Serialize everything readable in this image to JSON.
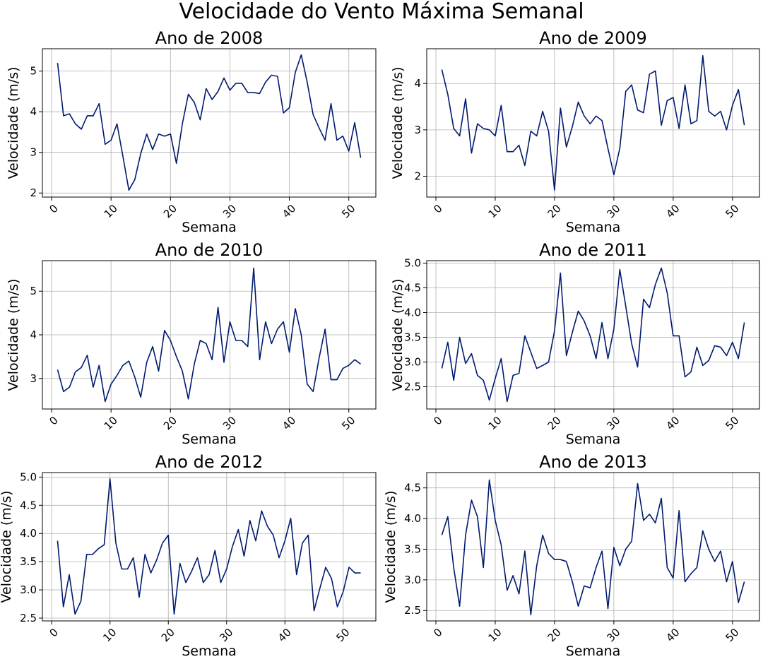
{
  "figure": {
    "title": "Velocidade do Vento Máxima Semanal"
  },
  "style": {
    "line_color": "#001a70",
    "grid_color": "#b0b0b0"
  },
  "chart_data": [
    {
      "type": "line",
      "title": "Ano de 2008",
      "xlabel": "Semana",
      "ylabel": "Velocidade (m/s)",
      "xlim": [
        -1.55,
        54.55
      ],
      "ylim": [
        1.9,
        5.55
      ],
      "xticks": [
        0,
        10,
        20,
        30,
        40,
        50
      ],
      "yticks": [
        2,
        3,
        4,
        5
      ],
      "grid": true,
      "x": [
        1,
        2,
        3,
        4,
        5,
        6,
        7,
        8,
        9,
        10,
        11,
        12,
        13,
        14,
        15,
        16,
        17,
        18,
        19,
        20,
        21,
        22,
        23,
        24,
        25,
        26,
        27,
        28,
        29,
        30,
        31,
        32,
        33,
        34,
        35,
        36,
        37,
        38,
        39,
        40,
        41,
        42,
        43,
        44,
        45,
        46,
        47,
        48,
        49,
        50,
        51,
        52
      ],
      "y": [
        5.2,
        3.9,
        3.95,
        3.7,
        3.57,
        3.9,
        3.9,
        4.2,
        3.2,
        3.3,
        3.7,
        2.9,
        2.07,
        2.33,
        2.97,
        3.45,
        3.07,
        3.45,
        3.4,
        3.45,
        2.73,
        3.7,
        4.43,
        4.23,
        3.8,
        4.57,
        4.3,
        4.5,
        4.83,
        4.53,
        4.7,
        4.7,
        4.47,
        4.47,
        4.45,
        4.73,
        4.9,
        4.87,
        3.97,
        4.1,
        4.97,
        5.4,
        4.73,
        3.93,
        3.6,
        3.3,
        4.2,
        3.3,
        3.4,
        3.03,
        3.73,
        2.87
      ]
    },
    {
      "type": "line",
      "title": "Ano de 2009",
      "xlabel": "Semana",
      "ylabel": "Velocidade (m/s)",
      "xlim": [
        -1.55,
        54.55
      ],
      "ylim": [
        1.55,
        4.75
      ],
      "xticks": [
        0,
        10,
        20,
        30,
        40,
        50
      ],
      "yticks": [
        2,
        3,
        4
      ],
      "grid": true,
      "x": [
        1,
        2,
        3,
        4,
        5,
        6,
        7,
        8,
        9,
        10,
        11,
        12,
        13,
        14,
        15,
        16,
        17,
        18,
        19,
        20,
        21,
        22,
        23,
        24,
        25,
        26,
        27,
        28,
        29,
        30,
        31,
        32,
        33,
        34,
        35,
        36,
        37,
        38,
        39,
        40,
        41,
        42,
        43,
        44,
        45,
        46,
        47,
        48,
        49,
        50,
        51,
        52
      ],
      "y": [
        4.3,
        3.77,
        3.03,
        2.87,
        3.67,
        2.5,
        3.13,
        3.03,
        3.0,
        2.87,
        3.53,
        2.53,
        2.53,
        2.67,
        2.23,
        2.97,
        2.87,
        3.4,
        2.97,
        1.7,
        3.47,
        2.63,
        3.07,
        3.6,
        3.3,
        3.13,
        3.3,
        3.2,
        2.6,
        2.03,
        2.6,
        3.83,
        3.97,
        3.43,
        3.37,
        4.2,
        4.27,
        3.1,
        3.63,
        3.7,
        3.03,
        3.97,
        3.13,
        3.2,
        4.6,
        3.4,
        3.3,
        3.4,
        3.0,
        3.53,
        3.87,
        3.1
      ]
    },
    {
      "type": "line",
      "title": "Ano de 2010",
      "xlabel": "Semana",
      "ylabel": "Velocidade (m/s)",
      "xlim": [
        -1.55,
        54.55
      ],
      "ylim": [
        2.3,
        5.7
      ],
      "xticks": [
        0,
        10,
        20,
        30,
        40,
        50
      ],
      "yticks": [
        3,
        4,
        5
      ],
      "grid": true,
      "x": [
        1,
        2,
        3,
        4,
        5,
        6,
        7,
        8,
        9,
        10,
        11,
        12,
        13,
        14,
        15,
        16,
        17,
        18,
        19,
        20,
        21,
        22,
        23,
        24,
        25,
        26,
        27,
        28,
        29,
        30,
        31,
        32,
        33,
        34,
        35,
        36,
        37,
        38,
        39,
        40,
        41,
        42,
        43,
        44,
        45,
        46,
        47,
        48,
        49,
        50,
        51,
        52
      ],
      "y": [
        3.2,
        2.7,
        2.8,
        3.15,
        3.25,
        3.53,
        2.8,
        3.3,
        2.47,
        2.87,
        3.07,
        3.3,
        3.4,
        3.03,
        2.57,
        3.37,
        3.73,
        3.17,
        4.1,
        3.87,
        3.5,
        3.17,
        2.53,
        3.33,
        3.87,
        3.8,
        3.43,
        4.63,
        3.37,
        4.3,
        3.87,
        3.87,
        3.73,
        5.53,
        3.43,
        4.3,
        3.8,
        4.13,
        4.3,
        3.6,
        4.6,
        4.0,
        2.87,
        2.7,
        3.47,
        4.13,
        2.97,
        2.97,
        3.23,
        3.3,
        3.43,
        3.33
      ]
    },
    {
      "type": "line",
      "title": "Ano de 2011",
      "xlabel": "Semana",
      "ylabel": "Velocidade (m/s)",
      "xlim": [
        -1.55,
        54.55
      ],
      "ylim": [
        2.05,
        5.05
      ],
      "xticks": [
        0,
        10,
        20,
        30,
        40,
        50
      ],
      "yticks": [
        2.5,
        3.0,
        3.5,
        4.0,
        4.5,
        5.0
      ],
      "grid": true,
      "x": [
        1,
        2,
        3,
        4,
        5,
        6,
        7,
        8,
        9,
        10,
        11,
        12,
        13,
        14,
        15,
        16,
        17,
        18,
        19,
        20,
        21,
        22,
        23,
        24,
        25,
        26,
        27,
        28,
        29,
        30,
        31,
        32,
        33,
        34,
        35,
        36,
        37,
        38,
        39,
        40,
        41,
        42,
        43,
        44,
        45,
        46,
        47,
        48,
        49,
        50,
        51,
        52
      ],
      "y": [
        2.87,
        3.4,
        2.63,
        3.5,
        2.97,
        3.17,
        2.73,
        2.63,
        2.23,
        2.67,
        3.07,
        2.2,
        2.73,
        2.77,
        3.53,
        3.2,
        2.87,
        2.93,
        3.0,
        3.63,
        4.8,
        3.13,
        3.6,
        4.03,
        3.83,
        3.53,
        3.07,
        3.8,
        3.07,
        3.67,
        4.87,
        4.13,
        3.37,
        2.9,
        4.27,
        4.1,
        4.57,
        4.9,
        4.4,
        3.53,
        3.53,
        2.7,
        2.8,
        3.3,
        2.93,
        3.03,
        3.33,
        3.3,
        3.13,
        3.4,
        3.07,
        3.8
      ]
    },
    {
      "type": "line",
      "title": "Ano de 2012",
      "xlabel": "Semana",
      "ylabel": "Velocidade (m/s)",
      "xlim": [
        -1.6,
        55.6
      ],
      "ylim": [
        2.45,
        5.08
      ],
      "xticks": [
        0,
        10,
        20,
        30,
        40,
        50
      ],
      "yticks": [
        2.5,
        3.0,
        3.5,
        4.0,
        4.5,
        5.0
      ],
      "grid": true,
      "x": [
        1,
        2,
        3,
        4,
        5,
        6,
        7,
        8,
        9,
        10,
        11,
        12,
        13,
        14,
        15,
        16,
        17,
        18,
        19,
        20,
        21,
        22,
        23,
        24,
        25,
        26,
        27,
        28,
        29,
        30,
        31,
        32,
        33,
        34,
        35,
        36,
        37,
        38,
        39,
        40,
        41,
        42,
        43,
        44,
        45,
        46,
        47,
        48,
        49,
        50,
        51,
        52,
        53
      ],
      "y": [
        3.87,
        2.7,
        3.27,
        2.57,
        2.8,
        3.63,
        3.63,
        3.73,
        3.8,
        4.97,
        3.83,
        3.37,
        3.37,
        3.57,
        2.87,
        3.63,
        3.3,
        3.53,
        3.83,
        3.97,
        2.57,
        3.47,
        3.13,
        3.33,
        3.57,
        3.13,
        3.27,
        3.7,
        3.13,
        3.37,
        3.77,
        4.07,
        3.6,
        4.23,
        3.87,
        4.4,
        4.13,
        3.97,
        3.57,
        3.87,
        4.27,
        3.27,
        3.83,
        3.97,
        2.63,
        3.03,
        3.4,
        3.2,
        2.7,
        2.97,
        3.4,
        3.3,
        3.3
      ]
    },
    {
      "type": "line",
      "title": "Ano de 2013",
      "xlabel": "Semana",
      "ylabel": "Velocidade (m/s)",
      "xlim": [
        -1.55,
        54.55
      ],
      "ylim": [
        2.33,
        4.75
      ],
      "xticks": [
        0,
        10,
        20,
        30,
        40,
        50
      ],
      "yticks": [
        2.5,
        3.0,
        3.5,
        4.0,
        4.5
      ],
      "grid": true,
      "x": [
        1,
        2,
        3,
        4,
        5,
        6,
        7,
        8,
        9,
        10,
        11,
        12,
        13,
        14,
        15,
        16,
        17,
        18,
        19,
        20,
        21,
        22,
        23,
        24,
        25,
        26,
        27,
        28,
        29,
        30,
        31,
        32,
        33,
        34,
        35,
        36,
        37,
        38,
        39,
        40,
        41,
        42,
        43,
        44,
        45,
        46,
        47,
        48,
        49,
        50,
        51,
        52
      ],
      "y": [
        3.73,
        4.03,
        3.2,
        2.57,
        3.73,
        4.3,
        4.03,
        3.2,
        4.63,
        3.97,
        3.57,
        2.83,
        3.07,
        2.77,
        3.47,
        2.43,
        3.23,
        3.73,
        3.43,
        3.33,
        3.33,
        3.3,
        2.97,
        2.57,
        2.9,
        2.87,
        3.2,
        3.47,
        2.53,
        3.53,
        3.23,
        3.5,
        3.63,
        4.57,
        3.97,
        4.07,
        3.93,
        4.33,
        3.2,
        3.03,
        4.13,
        2.97,
        3.1,
        3.2,
        3.8,
        3.5,
        3.3,
        3.47,
        2.97,
        3.3,
        2.63,
        2.97
      ]
    }
  ]
}
